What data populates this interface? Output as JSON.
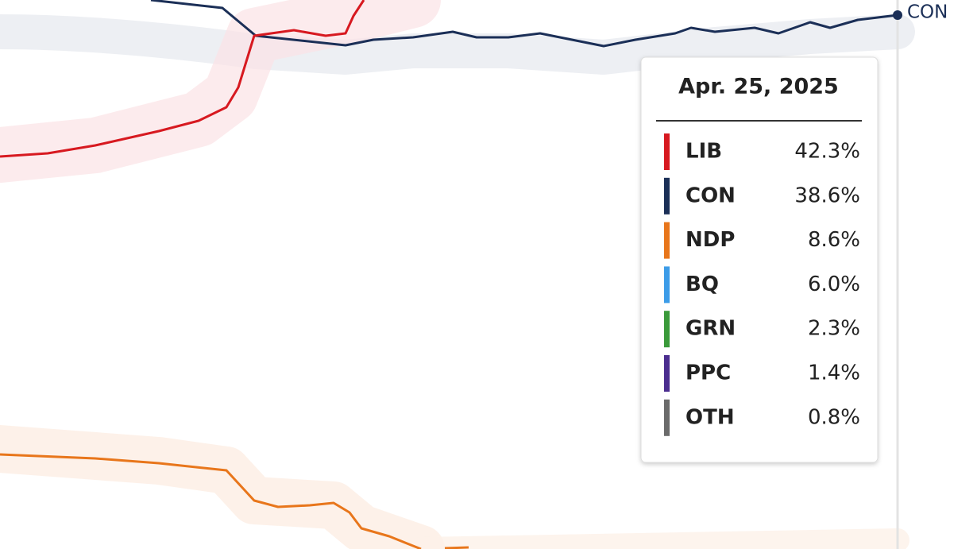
{
  "tooltip": {
    "date": "Apr. 25, 2025",
    "rows": [
      {
        "party": "LIB",
        "value": "42.3%",
        "color": "#d71920"
      },
      {
        "party": "CON",
        "value": "38.6%",
        "color": "#1b2f57"
      },
      {
        "party": "NDP",
        "value": "8.6%",
        "color": "#e8761b"
      },
      {
        "party": "BQ",
        "value": "6.0%",
        "color": "#3c9ce8"
      },
      {
        "party": "GRN",
        "value": "2.3%",
        "color": "#3a9a3a"
      },
      {
        "party": "PPC",
        "value": "1.4%",
        "color": "#4b2d8f"
      },
      {
        "party": "OTH",
        "value": "0.8%",
        "color": "#6b6b6b"
      }
    ]
  },
  "end_label": "CON"
}
